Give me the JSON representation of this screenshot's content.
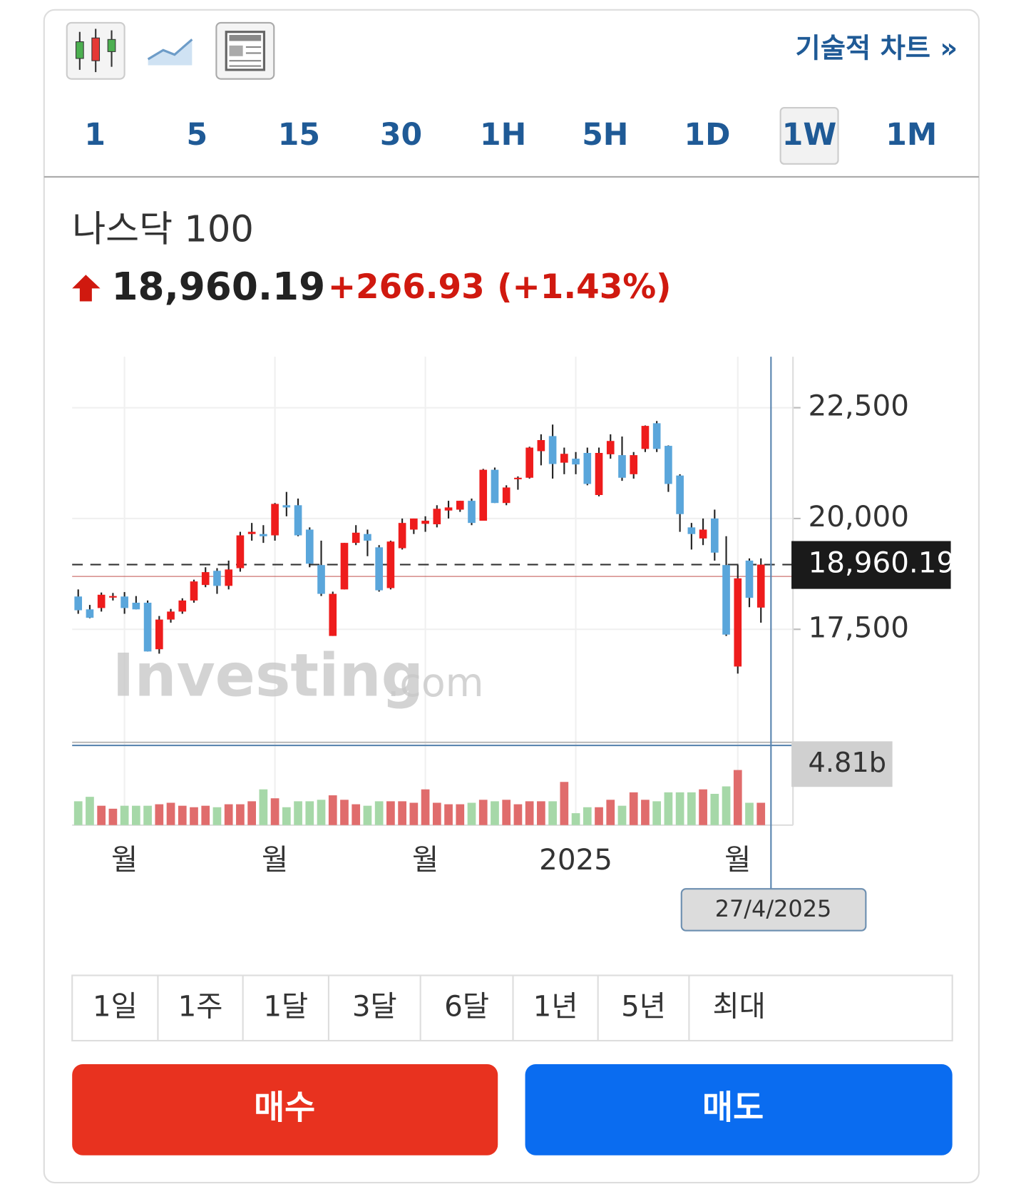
{
  "toolbar": {
    "link": "기술적 차트 »"
  },
  "intervals": {
    "items": [
      "1",
      "5",
      "15",
      "30",
      "1H",
      "5H",
      "1D",
      "1W",
      "1M"
    ],
    "selected_index": 7
  },
  "quote": {
    "name": "나스닥 100",
    "price": "18,960.19",
    "change": "+266.93",
    "change_percent": "(+1.43%)"
  },
  "ranges": [
    "1일",
    "1주",
    "1달",
    "3달",
    "6달",
    "1년",
    "5년",
    "최대"
  ],
  "buttons": {
    "buy": "매수",
    "sell": "매도"
  },
  "chart_data": {
    "type": "candlestick",
    "categories": [
      null,
      null,
      null,
      null,
      "월",
      null,
      null,
      null,
      null,
      null,
      null,
      null,
      null,
      null,
      null,
      null,
      null,
      "월",
      null,
      null,
      null,
      null,
      null,
      null,
      null,
      null,
      null,
      null,
      null,
      null,
      "월",
      null,
      null,
      null,
      null,
      null,
      null,
      null,
      null,
      null,
      null,
      null,
      null,
      "2025",
      null,
      null,
      null,
      null,
      null,
      null,
      null,
      null,
      null,
      null,
      null,
      null,
      null,
      "월",
      null,
      null
    ],
    "open": [
      18240,
      17950,
      17980,
      18230,
      18240,
      18100,
      18100,
      17050,
      17720,
      17900,
      18150,
      18500,
      18820,
      18480,
      18880,
      19650,
      19650,
      19620,
      20300,
      20300,
      19750,
      18950,
      17350,
      18400,
      19450,
      19650,
      19350,
      18430,
      19330,
      19750,
      19880,
      19870,
      20180,
      20200,
      20400,
      19950,
      21100,
      20350,
      20900,
      20920,
      21520,
      21860,
      21260,
      21350,
      21480,
      20530,
      21450,
      21430,
      21000,
      21570,
      22150,
      21640,
      20970,
      19800,
      19550,
      20000,
      18950,
      16660,
      19050,
      17990
    ],
    "high": [
      18400,
      18050,
      18330,
      18320,
      18340,
      18250,
      18150,
      17800,
      17960,
      18200,
      18620,
      18900,
      18880,
      19050,
      19700,
      19900,
      19850,
      20350,
      20600,
      20450,
      19800,
      19500,
      18350,
      19450,
      19850,
      19750,
      19400,
      19500,
      20000,
      20000,
      20050,
      20300,
      20400,
      20400,
      20450,
      21120,
      21150,
      20750,
      20950,
      21620,
      21900,
      22120,
      21600,
      21500,
      21600,
      21600,
      21900,
      21850,
      21500,
      22100,
      22200,
      21650,
      21000,
      19900,
      20000,
      20200,
      19600,
      18950,
      19100,
      19100
    ],
    "low": [
      17850,
      17750,
      17900,
      18150,
      17850,
      17950,
      17000,
      16950,
      17650,
      17850,
      18100,
      18450,
      18300,
      18400,
      18800,
      19500,
      19450,
      19500,
      20050,
      19600,
      18900,
      18250,
      17350,
      18400,
      19400,
      19150,
      18350,
      18400,
      19300,
      19650,
      19700,
      19800,
      20000,
      20150,
      19850,
      19950,
      20350,
      20300,
      20650,
      20900,
      21200,
      20900,
      21000,
      21000,
      20750,
      20500,
      21350,
      20850,
      20900,
      21500,
      21500,
      20600,
      19700,
      19300,
      19400,
      19050,
      17350,
      16500,
      18000,
      17650
    ],
    "close": [
      17930,
      17760,
      18280,
      18250,
      17980,
      17950,
      17000,
      17720,
      17900,
      18150,
      18580,
      18790,
      18480,
      18850,
      19620,
      19700,
      19600,
      20330,
      20250,
      19620,
      18980,
      18300,
      18300,
      19450,
      19680,
      19500,
      18380,
      19480,
      19900,
      20000,
      19950,
      20220,
      20250,
      20400,
      19900,
      21100,
      20350,
      20700,
      20920,
      21600,
      21770,
      21230,
      21460,
      21220,
      20780,
      21480,
      21750,
      20920,
      21430,
      22090,
      21570,
      20780,
      20100,
      19650,
      19750,
      19230,
      17380,
      18650,
      18210,
      18960.19
    ],
    "up_color": "#ee1c1c",
    "down_color": "#5aa6db",
    "volume_up_color": "#e06c6c",
    "volume_down_color": "#a6d8a8",
    "volume": [
      1.6,
      1.9,
      1.3,
      1.1,
      1.3,
      1.3,
      1.3,
      1.4,
      1.5,
      1.3,
      1.2,
      1.3,
      1.2,
      1.4,
      1.4,
      1.6,
      2.4,
      1.8,
      1.2,
      1.6,
      1.6,
      1.7,
      2.0,
      1.7,
      1.4,
      1.3,
      1.6,
      1.6,
      1.6,
      1.5,
      2.4,
      1.5,
      1.4,
      1.4,
      1.5,
      1.7,
      1.6,
      1.7,
      1.4,
      1.6,
      1.6,
      1.6,
      2.9,
      0.8,
      1.2,
      1.2,
      1.7,
      1.3,
      2.2,
      1.7,
      1.6,
      2.2,
      2.2,
      2.2,
      2.4,
      2.1,
      2.6,
      3.7,
      1.5,
      1.5
    ],
    "ylim": [
      15000,
      23650
    ],
    "yticks": [
      {
        "value": 17500,
        "label": "17,500"
      },
      {
        "value": 20000,
        "label": "20,000"
      },
      {
        "value": 22500,
        "label": "22,500"
      }
    ],
    "y2lim": [
      0,
      5.2
    ],
    "volume_marker": {
      "value": 4.81,
      "label": "4.81b"
    },
    "previous_close": 18693.26,
    "crosshair_label": "27/4/2025",
    "watermark": [
      "Investing",
      ".com"
    ],
    "grid": true
  }
}
